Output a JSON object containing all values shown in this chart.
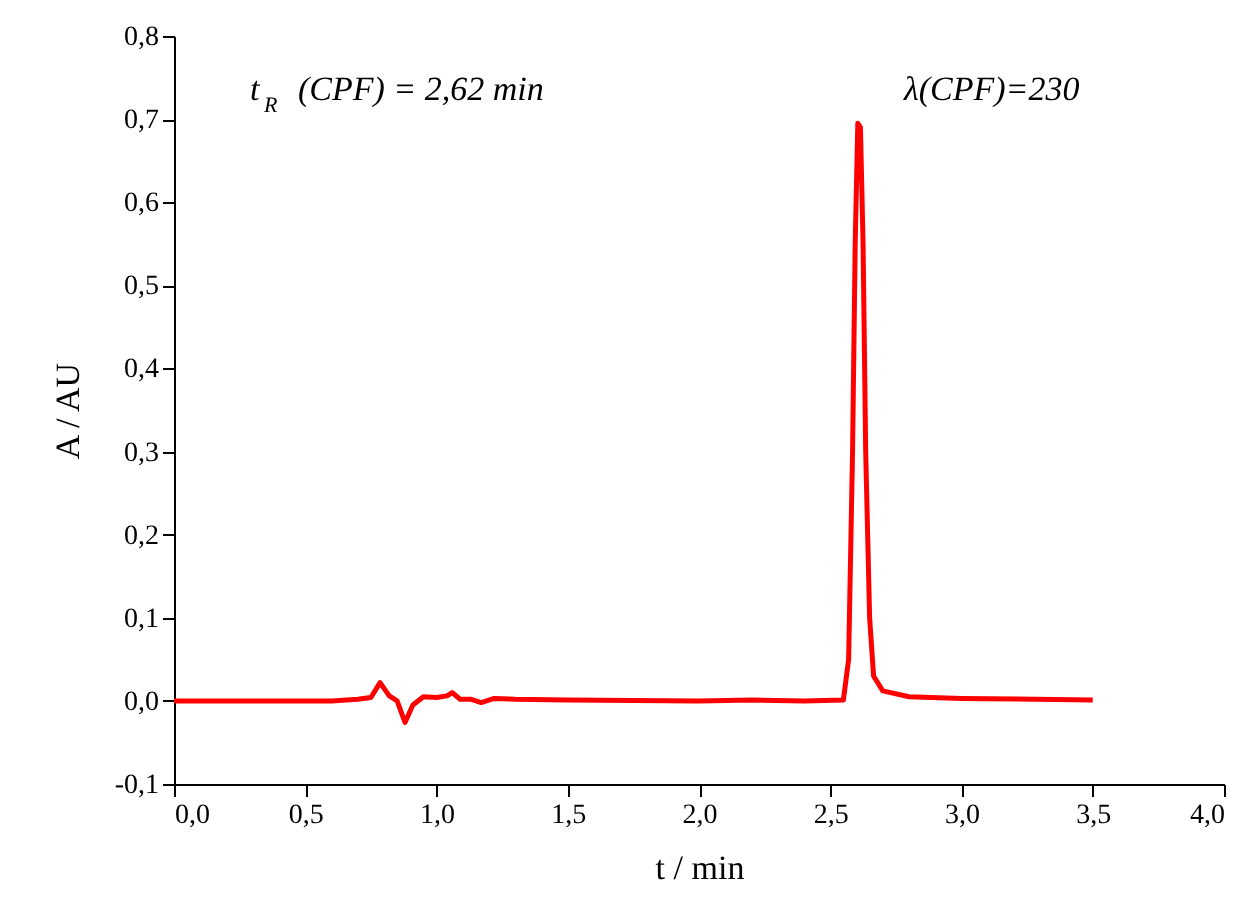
{
  "chart_data": {
    "type": "line",
    "xlabel": "t / min",
    "ylabel": "A / AU",
    "annotations": [
      "t$_{R}$ (CPF) = 2,62 min",
      "λ(CPF)=230"
    ],
    "x": [
      0,
      0.3,
      0.6,
      0.7,
      0.75,
      0.785,
      0.82,
      0.85,
      0.88,
      0.91,
      0.95,
      1.0,
      1.04,
      1.06,
      1.09,
      1.13,
      1.17,
      1.22,
      1.3,
      1.5,
      2.0,
      2.2,
      2.4,
      2.55,
      2.57,
      2.585,
      2.595,
      2.605,
      2.615,
      2.625,
      2.635,
      2.65,
      2.665,
      2.7,
      2.8,
      3.0,
      3.5
    ],
    "series": [
      {
        "color": "#ff0000",
        "values": [
          0,
          0,
          0,
          0.002,
          0.004,
          0.022,
          0.006,
          0.0,
          -0.026,
          -0.005,
          0.005,
          0.004,
          0.006,
          0.01,
          0.002,
          0.002,
          -0.002,
          0.003,
          0.002,
          0.001,
          0,
          0.001,
          0,
          0.001,
          0.05,
          0.3,
          0.55,
          0.695,
          0.69,
          0.55,
          0.3,
          0.1,
          0.03,
          0.012,
          0.005,
          0.003,
          0.001
        ]
      }
    ],
    "xlim": [
      0,
      4.0
    ],
    "ylim": [
      -0.1,
      0.8
    ],
    "xticks": [
      {
        "value": 0,
        "label": "0,0"
      },
      {
        "value": 0.5,
        "label": "0,5"
      },
      {
        "value": 1.0,
        "label": "1,0"
      },
      {
        "value": 1.5,
        "label": "1,5"
      },
      {
        "value": 2.0,
        "label": "2,0"
      },
      {
        "value": 2.5,
        "label": "2,5"
      },
      {
        "value": 3.0,
        "label": "3,0"
      },
      {
        "value": 3.5,
        "label": "3,5"
      },
      {
        "value": 4.0,
        "label": "4,0"
      }
    ],
    "yticks": [
      {
        "value": -0.1,
        "label": "-0,1"
      },
      {
        "value": 0,
        "label": "0,0"
      },
      {
        "value": 0.1,
        "label": "0,1"
      },
      {
        "value": 0.2,
        "label": "0,2"
      },
      {
        "value": 0.3,
        "label": "0,3"
      },
      {
        "value": 0.4,
        "label": "0,4"
      },
      {
        "value": 0.5,
        "label": "0,5"
      },
      {
        "value": 0.6,
        "label": "0,6"
      },
      {
        "value": 0.7,
        "label": "0,7"
      },
      {
        "value": 0.8,
        "label": "0,8"
      }
    ],
    "grid": false,
    "marker": "none",
    "line_style": "solid"
  }
}
